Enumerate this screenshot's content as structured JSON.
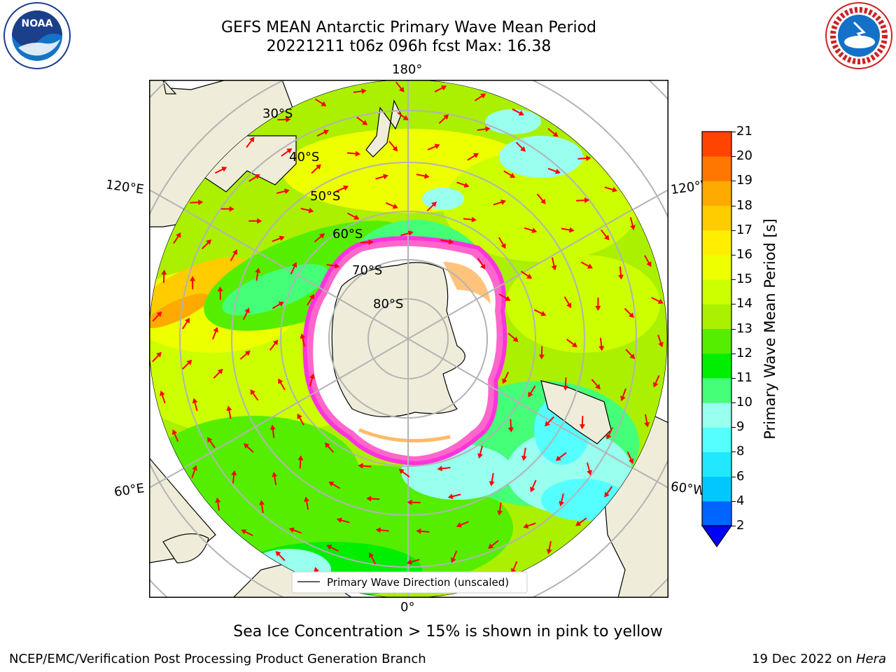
{
  "header": {
    "title_line1": "GEFS MEAN Antarctic Primary Wave Mean Period",
    "title_line2": "20221211 t06z 096h fcst   Max: 16.38"
  },
  "logos": {
    "left": {
      "icon": "noaa-logo",
      "text": "NOAA",
      "ring_text": "NATIONAL OCEANIC AND ATMOSPHERIC ADMINISTRATION · U.S. DEPARTMENT OF COMMERCE"
    },
    "right": {
      "icon": "nws-logo",
      "ring_text": "NATIONAL WEATHER SERVICE"
    }
  },
  "map": {
    "projection": "south-polar-stereographic",
    "longitude_labels": {
      "top": "180°",
      "bottom": "0°",
      "upper_left": "120°E",
      "upper_right": "120°W",
      "lower_left": "60°E",
      "lower_right": "60°W"
    },
    "latitude_labels": [
      "30°S",
      "40°S",
      "50°S",
      "60°S",
      "70°S",
      "80°S"
    ],
    "legend": {
      "label": "Primary Wave Direction (unscaled)",
      "placement": "bottom-center"
    },
    "colors": {
      "land": "#efedd9",
      "ice_edge": "#ff33dd",
      "arrows": "#ff0000",
      "grid": "#b3b3b3"
    }
  },
  "colorbar": {
    "label": "Primary Wave Mean Period [s]",
    "ticks": [
      "2",
      "4",
      "6",
      "8",
      "9",
      "10",
      "11",
      "12",
      "13",
      "14",
      "15",
      "16",
      "17",
      "18",
      "19",
      "20",
      "21"
    ],
    "colors": [
      "#0064ff",
      "#00c8ff",
      "#22e8ff",
      "#55ffff",
      "#99ffee",
      "#44ff77",
      "#00ee00",
      "#55ee00",
      "#aaf000",
      "#ccff00",
      "#eeff00",
      "#ffee00",
      "#ffcc00",
      "#ffaa00",
      "#ff7700",
      "#ff4400",
      "#ff0000"
    ],
    "extend": "min"
  },
  "footer": {
    "note": "Sea Ice Concentration > 15% is shown in pink to yellow",
    "left": "NCEP/EMC/Verification Post Processing Product Generation Branch",
    "right_date": "19 Dec 2022 on ",
    "right_machine": "Hera"
  }
}
